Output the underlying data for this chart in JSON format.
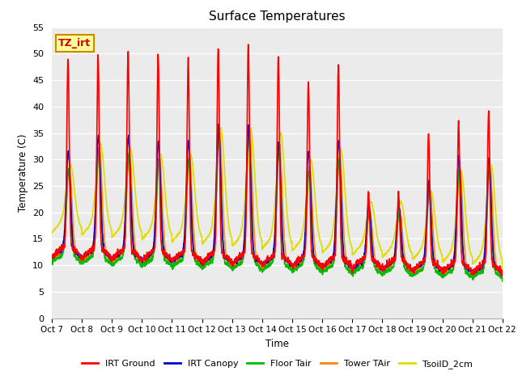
{
  "title": "Surface Temperatures",
  "xlabel": "Time",
  "ylabel": "Temperature (C)",
  "ylim": [
    0,
    55
  ],
  "yticks": [
    0,
    5,
    10,
    15,
    20,
    25,
    30,
    35,
    40,
    45,
    50,
    55
  ],
  "xtick_labels": [
    "Oct 7",
    "Oct 8",
    "Oct 9",
    "Oct 10",
    "Oct 11",
    "Oct 12",
    "Oct 13",
    "Oct 14",
    "Oct 15",
    "Oct 16",
    "Oct 17",
    "Oct 18",
    "Oct 19",
    "Oct 20",
    "Oct 21",
    "Oct 22"
  ],
  "series": {
    "IRT Ground": {
      "color": "#ff0000",
      "lw": 1.2
    },
    "IRT Canopy": {
      "color": "#0000cc",
      "lw": 1.2
    },
    "Floor Tair": {
      "color": "#00bb00",
      "lw": 1.2
    },
    "Tower TAir": {
      "color": "#ff8800",
      "lw": 1.2
    },
    "TsoilD_2cm": {
      "color": "#dddd00",
      "lw": 1.2
    }
  },
  "annotation_text": "TZ_irt",
  "annotation_bg": "#ffff99",
  "annotation_border": "#cc8800",
  "plot_bg_color": "#ebebeb"
}
